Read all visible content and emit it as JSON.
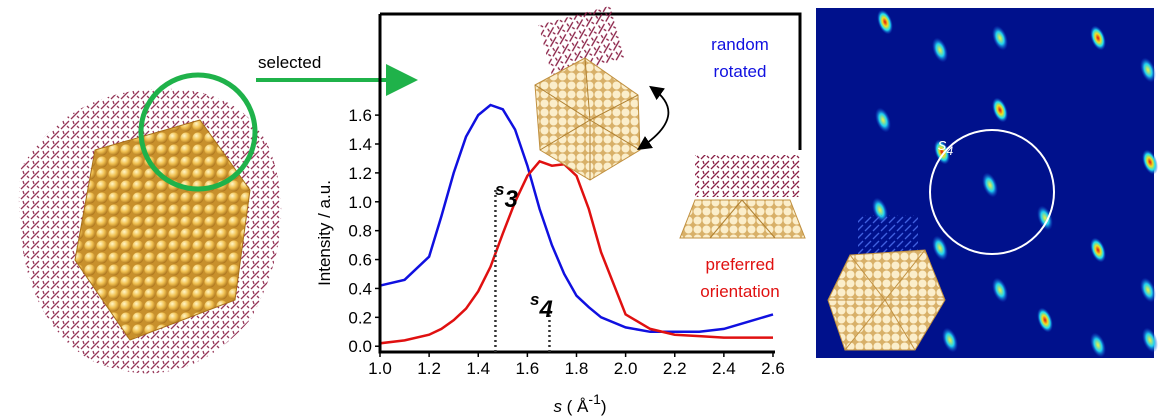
{
  "chart_data": {
    "type": "line",
    "xlabel": {
      "symbol": "s",
      "text": " ( Å",
      "superscript": "-1",
      "close": ")"
    },
    "ylabel": "Intensity / a.u.",
    "x": [
      1.0,
      1.1,
      1.2,
      1.25,
      1.3,
      1.35,
      1.4,
      1.45,
      1.5,
      1.55,
      1.6,
      1.65,
      1.7,
      1.75,
      1.8,
      1.85,
      1.9,
      2.0,
      2.1,
      2.2,
      2.3,
      2.4,
      2.5,
      2.6
    ],
    "series": [
      {
        "name": [
          "random",
          "rotated"
        ],
        "color": "#1010e0",
        "values": [
          0.42,
          0.46,
          0.62,
          0.9,
          1.2,
          1.45,
          1.6,
          1.67,
          1.64,
          1.5,
          1.25,
          0.95,
          0.7,
          0.5,
          0.35,
          0.27,
          0.2,
          0.13,
          0.1,
          0.1,
          0.1,
          0.12,
          0.17,
          0.22
        ]
      },
      {
        "name": [
          "preferred",
          "orientation"
        ],
        "color": "#e01010",
        "values": [
          0.02,
          0.04,
          0.08,
          0.12,
          0.18,
          0.26,
          0.38,
          0.55,
          0.78,
          1.0,
          1.18,
          1.28,
          1.25,
          1.26,
          1.18,
          0.95,
          0.65,
          0.22,
          0.12,
          0.08,
          0.07,
          0.06,
          0.06,
          0.06
        ]
      }
    ],
    "markers": [
      {
        "x": 1.47,
        "symbol": "s",
        "subscript": "3"
      },
      {
        "x": 1.69,
        "symbol": "s",
        "subscript": "4"
      }
    ],
    "xlim": [
      1.0,
      2.71
    ],
    "ylim": [
      -0.04,
      2.3
    ],
    "xticks": [
      {
        "value": 1.0,
        "label": "1.0"
      },
      1.2,
      1.4,
      1.6,
      1.8,
      {
        "value": 2.0,
        "label": "2.0"
      },
      2.2,
      2.4,
      2.6
    ],
    "yticks": [
      {
        "value": 0,
        "label": "0.0"
      },
      0.2,
      0.4,
      0.6,
      0.8,
      {
        "value": 1,
        "label": "1.0"
      },
      1.2,
      1.4,
      1.6
    ],
    "annotations": {
      "selected": "selected",
      "pattern_symbol": "s",
      "pattern_subscript": "4"
    }
  }
}
